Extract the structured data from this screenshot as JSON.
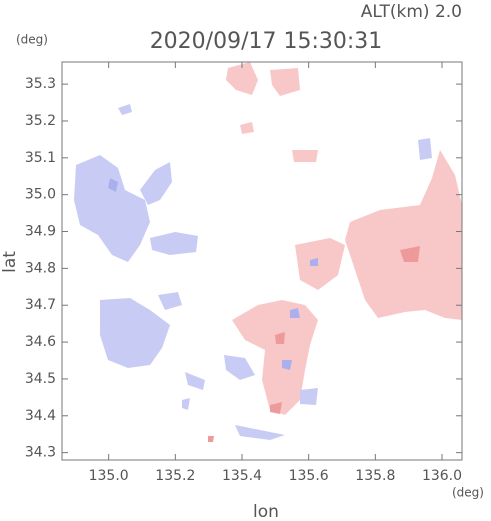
{
  "alt_label": "ALT(km)  2.0",
  "chart_data": {
    "type": "map",
    "title": "2020/09/17 15:30:31",
    "x_label": "lon",
    "y_label": "lat",
    "x_unit": "(deg)",
    "y_unit": "(deg)",
    "xlim": [
      134.86,
      136.06
    ],
    "ylim": [
      34.28,
      35.36
    ],
    "xticks": [
      {
        "value": 135,
        "label": "135.0"
      },
      135.2,
      135.4,
      135.6,
      135.8,
      {
        "value": 136,
        "label": "136.0"
      }
    ],
    "yticks": [
      34.3,
      34.4,
      34.5,
      34.6,
      34.7,
      34.8,
      34.9,
      {
        "value": 35,
        "label": "35.0"
      },
      35.1,
      35.2,
      35.3
    ]
  }
}
